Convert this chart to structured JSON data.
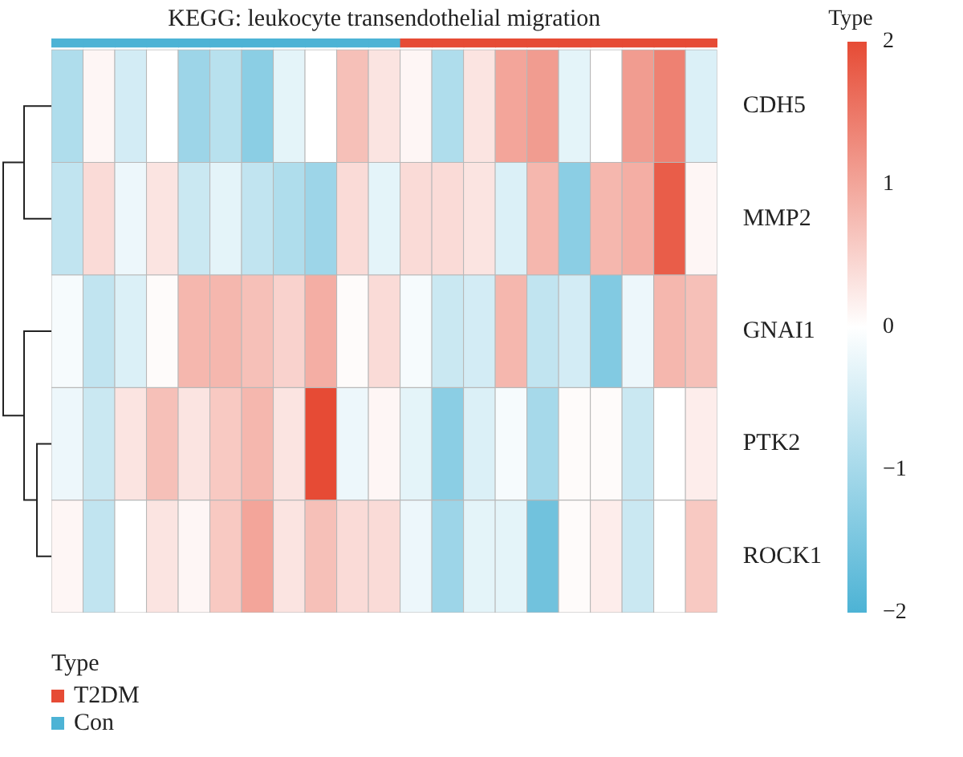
{
  "chart_data": {
    "type": "heatmap",
    "title": "KEGG: leukocyte transendothelial migration",
    "categories": [
      null,
      null,
      null,
      null,
      null,
      null,
      null,
      null,
      null,
      null,
      null,
      null,
      null,
      null,
      null,
      null,
      null,
      null,
      null,
      null,
      null
    ],
    "y_categories": [
      "CDH5",
      "MMP2",
      "GNAI1",
      "PTK2",
      "ROCK1"
    ],
    "cells": [
      [
        -0.9,
        0.1,
        -0.5,
        0,
        -1.1,
        -0.8,
        -1.3,
        -0.3,
        0,
        0.7,
        0.3,
        0.1,
        -0.9,
        0.3,
        1.0,
        1.1,
        -0.3,
        0,
        1.1,
        1.4,
        -0.4
      ],
      [
        -0.7,
        0.4,
        -0.2,
        0.3,
        -0.6,
        -0.3,
        -0.7,
        -0.9,
        -1.1,
        0.4,
        -0.3,
        0.4,
        0.4,
        0.3,
        -0.4,
        0.8,
        -1.3,
        0.8,
        0.9,
        1.8,
        0.1
      ],
      [
        -0.1,
        -0.7,
        -0.4,
        0.05,
        0.8,
        0.8,
        0.7,
        0.5,
        0.9,
        0.05,
        0.4,
        -0.1,
        -0.6,
        -0.5,
        0.8,
        -0.7,
        -0.5,
        -1.4,
        -0.2,
        0.8,
        0.7
      ],
      [
        -0.2,
        -0.6,
        0.3,
        0.7,
        0.3,
        0.6,
        0.8,
        0.3,
        2.0,
        -0.2,
        0.1,
        -0.3,
        -1.3,
        -0.4,
        -0.1,
        -1.0,
        0.05,
        0.05,
        -0.6,
        0,
        0.2
      ],
      [
        0.1,
        -0.7,
        0,
        0.3,
        0.1,
        0.6,
        1.0,
        0.3,
        0.7,
        0.4,
        0.4,
        -0.2,
        -1.1,
        -0.3,
        -0.3,
        -1.6,
        0.05,
        0.2,
        -0.6,
        0,
        0.6
      ]
    ],
    "clabel": "Type",
    "clim": [
      -2,
      2
    ],
    "cticks": [
      {
        "value": -2,
        "label": "−2"
      },
      {
        "value": -1,
        "label": "−1"
      },
      0,
      1,
      2
    ],
    "legend_title": "Type",
    "legend": "bottom left",
    "colors": [
      "#4db3d5",
      "#4db3d5",
      "#4db3d5",
      "#4db3d5",
      "#4db3d5",
      "#4db3d5",
      "#4db3d5",
      "#4db3d5",
      "#4db3d5",
      "#4db3d5",
      "#4db3d5",
      "#e64b35",
      "#e64b35",
      "#e64b35",
      "#e64b35",
      "#e64b35",
      "#e64b35",
      "#e64b35",
      "#e64b35",
      "#e64b35",
      "#e64b35"
    ],
    "series": [
      {
        "name": "T2DM",
        "color": "#e64b35",
        "values": [
          null,
          null,
          null,
          null,
          null,
          null,
          null,
          null,
          null,
          null,
          null,
          null,
          null,
          null,
          null,
          null,
          null,
          null,
          null,
          null,
          null
        ]
      },
      {
        "name": "Con",
        "color": "#4db3d5",
        "values": [
          null,
          null,
          null,
          null,
          null,
          null,
          null,
          null,
          null,
          null,
          null,
          null,
          null,
          null,
          null,
          null,
          null,
          null,
          null,
          null,
          null
        ]
      }
    ]
  }
}
